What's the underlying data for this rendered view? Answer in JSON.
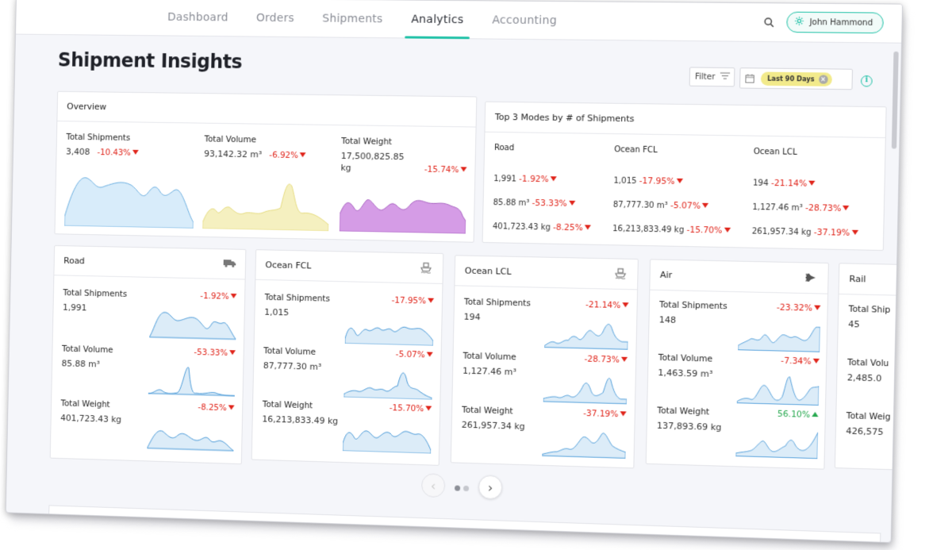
{
  "nav": {
    "tabs": [
      {
        "label": "Dashboard"
      },
      {
        "label": "Orders"
      },
      {
        "label": "Shipments"
      },
      {
        "label": "Analytics",
        "active": true
      },
      {
        "label": "Accounting"
      }
    ],
    "user_name": "John Hammond",
    "search_icon": "search-icon",
    "user_icon": "gear-icon"
  },
  "header": {
    "title": "Shipment Insights",
    "filter_label": "Filter",
    "date_chip": "Last 90 Days"
  },
  "colors": {
    "accent": "#23c2a8",
    "negative": "#e0251b",
    "positive": "#26a84e",
    "spark_blue": "#4a9ad8",
    "spark_blue_fill": "#dcecf8",
    "overview_blue_fill": "#d8ecfa",
    "overview_yellow_fill": "#f5f0c0",
    "overview_purple_fill": "#d59ce6"
  },
  "overview": {
    "title": "Overview",
    "metrics": [
      {
        "label": "Total Shipments",
        "value": "3,408",
        "change": "-10.43%"
      },
      {
        "label": "Total Volume",
        "value": "93,142.32 m³",
        "change": "-6.92%"
      },
      {
        "label": "Total Weight",
        "value": "17,500,825.85",
        "unit": "kg",
        "change": "-15.74%"
      }
    ]
  },
  "top3": {
    "title": "Top 3 Modes by # of Shipments",
    "modes": [
      {
        "name": "Road",
        "shipments": "1,991",
        "shipments_change": "-1.92%",
        "volume": "85.88 m³",
        "volume_change": "-53.33%",
        "weight": "401,723.43 kg",
        "weight_change": "-8.25%"
      },
      {
        "name": "Ocean FCL",
        "shipments": "1,015",
        "shipments_change": "-17.95%",
        "volume": "87,777.30 m³",
        "volume_change": "-5.07%",
        "weight": "16,213,833.49 kg",
        "weight_change": "-15.70%"
      },
      {
        "name": "Ocean LCL",
        "shipments": "194",
        "shipments_change": "-21.14%",
        "volume": "1,127.46 m³",
        "volume_change": "-28.73%",
        "weight": "261,957.34 kg",
        "weight_change": "-37.19%"
      }
    ]
  },
  "mode_cards": [
    {
      "name": "Road",
      "icon": "truck-icon",
      "shipments_label": "Total Shipments",
      "shipments": "1,991",
      "shipments_change": "-1.92%",
      "volume_label": "Total Volume",
      "volume": "85.88 m³",
      "volume_change": "-53.33%",
      "weight_label": "Total Weight",
      "weight": "401,723.43 kg",
      "weight_change": "-8.25%"
    },
    {
      "name": "Ocean FCL",
      "icon": "ship-icon",
      "shipments_label": "Total Shipments",
      "shipments": "1,015",
      "shipments_change": "-17.95%",
      "volume_label": "Total Volume",
      "volume": "87,777.30 m³",
      "volume_change": "-5.07%",
      "weight_label": "Total Weight",
      "weight": "16,213,833.49 kg",
      "weight_change": "-15.70%"
    },
    {
      "name": "Ocean LCL",
      "icon": "ship-icon",
      "shipments_label": "Total Shipments",
      "shipments": "194",
      "shipments_change": "-21.14%",
      "volume_label": "Total Volume",
      "volume": "1,127.46 m³",
      "volume_change": "-28.73%",
      "weight_label": "Total Weight",
      "weight": "261,957.34 kg",
      "weight_change": "-37.19%"
    },
    {
      "name": "Air",
      "icon": "plane-icon",
      "shipments_label": "Total Shipments",
      "shipments": "148",
      "shipments_change": "-23.32%",
      "volume_label": "Total Volume",
      "volume": "1,463.59 m³",
      "volume_change": "-7.34%",
      "weight_label": "Total Weight",
      "weight": "137,893.69 kg",
      "weight_change": "56.10%"
    },
    {
      "name": "Rail",
      "icon": "train-icon",
      "shipments_label": "Total Ship",
      "shipments": "45",
      "volume_label": "Total Volu",
      "volume": "2,485.0",
      "weight_label": "Total Weig",
      "weight": "426,575"
    }
  ],
  "pager": {
    "pages": 2,
    "current": 1
  }
}
